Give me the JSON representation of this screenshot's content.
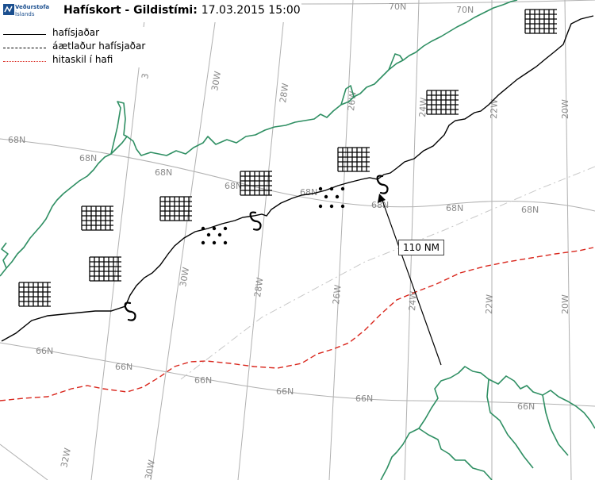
{
  "header": {
    "logo_line1": "Veðurstofa",
    "logo_line2": "Íslands",
    "title": "Hafískort - Gildistími:",
    "valid_time": "17.03.2015 15:00"
  },
  "legend": {
    "items": [
      {
        "label": "hafísjaðar",
        "style": "solid",
        "color": "#000000"
      },
      {
        "label": "áætlaður hafísjaðar",
        "style": "dashed",
        "color": "#000000"
      },
      {
        "label": "hitaskil í hafi",
        "style": "dotted",
        "color": "#d9261c"
      }
    ]
  },
  "distance_label": "110 NM",
  "grid_labels": {
    "lat70_a": "70N",
    "lat70_b": "70N",
    "lat68_a": "68N",
    "lat68_b": "68N",
    "lat68_c": "68N",
    "lat68_d": "68N",
    "lat68_e": "68N",
    "lat68_f": "68N",
    "lat66_a": "66N",
    "lat66_b": "66N",
    "lat66_c": "66N",
    "lat66_d": "66N",
    "lat66_e": "66N",
    "lat66_f": "66N",
    "lon30_top": "30W",
    "lon28_top": "28W",
    "lon26_top": "26W",
    "lon24_top": "24W",
    "lon22_top": "22W",
    "lon20_top": "20W",
    "lon30_mid": "30W",
    "lon28_mid": "28W",
    "lon26_mid": "26W",
    "lon24_mid": "24W",
    "lon22_mid": "22W",
    "lon20_mid": "20W",
    "lon32_bot": "32W",
    "lon30_bot": "30W",
    "lon32_top": "3"
  },
  "colors": {
    "coast": "#2f8f63",
    "ice_edge": "#000000",
    "ocean_front": "#d9261c",
    "grid": "#b0b0b0"
  },
  "symbols": {
    "ice_concentration": "hatched-grid-icon",
    "scattered_ice": "dot-cluster-icon",
    "ice_edge_marker": "s-curve-icon"
  }
}
